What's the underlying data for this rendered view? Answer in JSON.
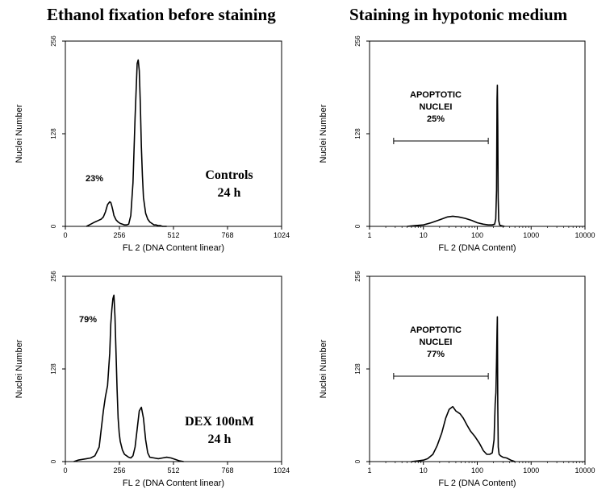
{
  "column_titles": {
    "left": "Ethanol fixation before staining",
    "right": "Staining in hypotonic medium"
  },
  "chart_data": [
    {
      "type": "line",
      "panel": "top-left",
      "ylabel": "Nuclei Number",
      "xlabel": "FL 2 (DNA Content linear)",
      "xscale": "linear",
      "xlim": [
        0,
        1024
      ],
      "ylim": [
        0,
        256
      ],
      "xticks": [
        "0",
        "256",
        "512",
        "768",
        "1024"
      ],
      "yticks": [
        "0",
        "128",
        "256"
      ],
      "annotations": [
        "23%",
        "Controls",
        "24 h"
      ],
      "x": [
        100,
        120,
        140,
        155,
        170,
        180,
        190,
        200,
        210,
        215,
        220,
        225,
        230,
        240,
        250,
        260,
        270,
        280,
        290,
        300,
        310,
        320,
        330,
        340,
        345,
        350,
        355,
        360,
        365,
        370,
        380,
        390,
        400,
        410,
        420,
        430,
        440,
        450,
        460,
        480
      ],
      "y": [
        0,
        3,
        6,
        8,
        10,
        13,
        20,
        30,
        34,
        33,
        28,
        22,
        15,
        9,
        6,
        4,
        3,
        2,
        2,
        3,
        15,
        60,
        150,
        225,
        230,
        215,
        170,
        110,
        70,
        40,
        18,
        10,
        6,
        4,
        2,
        2,
        1,
        1,
        0,
        0
      ]
    },
    {
      "type": "line",
      "panel": "top-right",
      "ylabel": "Nuclei Number",
      "xlabel": "FL 2 (DNA Content)",
      "xscale": "log",
      "xlim": [
        1,
        10000
      ],
      "ylim": [
        0,
        256
      ],
      "xticks": [
        "1",
        "10",
        "100",
        "1000",
        "10000"
      ],
      "yticks": [
        "0",
        "128",
        "256"
      ],
      "annotations": [
        "APOPTOTIC",
        "NUCLEI",
        "25%"
      ],
      "gate_x": [
        2.8,
        160
      ],
      "x": [
        5,
        7,
        10,
        14,
        20,
        28,
        35,
        45,
        60,
        80,
        100,
        130,
        160,
        190,
        210,
        220,
        228,
        233,
        236,
        240,
        244,
        250,
        260,
        280,
        320
      ],
      "y": [
        0,
        1,
        2,
        5,
        9,
        13,
        14,
        13,
        11,
        8,
        5,
        3,
        2,
        2,
        3,
        10,
        50,
        175,
        195,
        140,
        40,
        8,
        2,
        1,
        0
      ]
    },
    {
      "type": "line",
      "panel": "bottom-left",
      "ylabel": "Nuclei Number",
      "xlabel": "FL 2 (DNA Content linear)",
      "xscale": "linear",
      "xlim": [
        0,
        1024
      ],
      "ylim": [
        0,
        256
      ],
      "xticks": [
        "0",
        "256",
        "512",
        "768",
        "1024"
      ],
      "yticks": [
        "0",
        "128",
        "256"
      ],
      "annotations": [
        "79%",
        "DEX 100nM",
        "24 h"
      ],
      "x": [
        40,
        60,
        80,
        100,
        120,
        140,
        160,
        180,
        190,
        200,
        210,
        215,
        220,
        225,
        230,
        235,
        240,
        245,
        250,
        255,
        260,
        270,
        280,
        290,
        300,
        310,
        320,
        330,
        340,
        350,
        360,
        370,
        380,
        390,
        400,
        420,
        440,
        460,
        480,
        500,
        520,
        540,
        560
      ],
      "y": [
        0,
        2,
        3,
        4,
        5,
        8,
        20,
        70,
        90,
        105,
        150,
        190,
        210,
        225,
        230,
        200,
        150,
        100,
        60,
        40,
        28,
        16,
        10,
        8,
        6,
        5,
        8,
        20,
        45,
        70,
        75,
        60,
        30,
        12,
        6,
        5,
        4,
        5,
        6,
        5,
        3,
        1,
        0
      ]
    },
    {
      "type": "line",
      "panel": "bottom-right",
      "ylabel": "Nuclei Number",
      "xlabel": "FL 2 (DNA Content)",
      "xscale": "log",
      "xlim": [
        1,
        10000
      ],
      "ylim": [
        0,
        256
      ],
      "xticks": [
        "1",
        "10",
        "100",
        "1000",
        "10000"
      ],
      "yticks": [
        "0",
        "128",
        "256"
      ],
      "annotations": [
        "APOPTOTIC",
        "NUCLEI",
        "77%"
      ],
      "gate_x": [
        2.8,
        160
      ],
      "x": [
        6,
        8,
        10,
        12,
        15,
        18,
        22,
        26,
        30,
        35,
        40,
        48,
        55,
        65,
        75,
        90,
        110,
        130,
        150,
        170,
        190,
        205,
        215,
        222,
        228,
        233,
        236,
        240,
        245,
        255,
        270,
        300,
        350,
        420,
        500
      ],
      "y": [
        0,
        1,
        2,
        4,
        10,
        22,
        40,
        60,
        72,
        76,
        70,
        66,
        60,
        50,
        42,
        35,
        25,
        15,
        10,
        10,
        12,
        30,
        80,
        95,
        140,
        180,
        200,
        80,
        20,
        10,
        8,
        6,
        5,
        2,
        0
      ]
    }
  ]
}
